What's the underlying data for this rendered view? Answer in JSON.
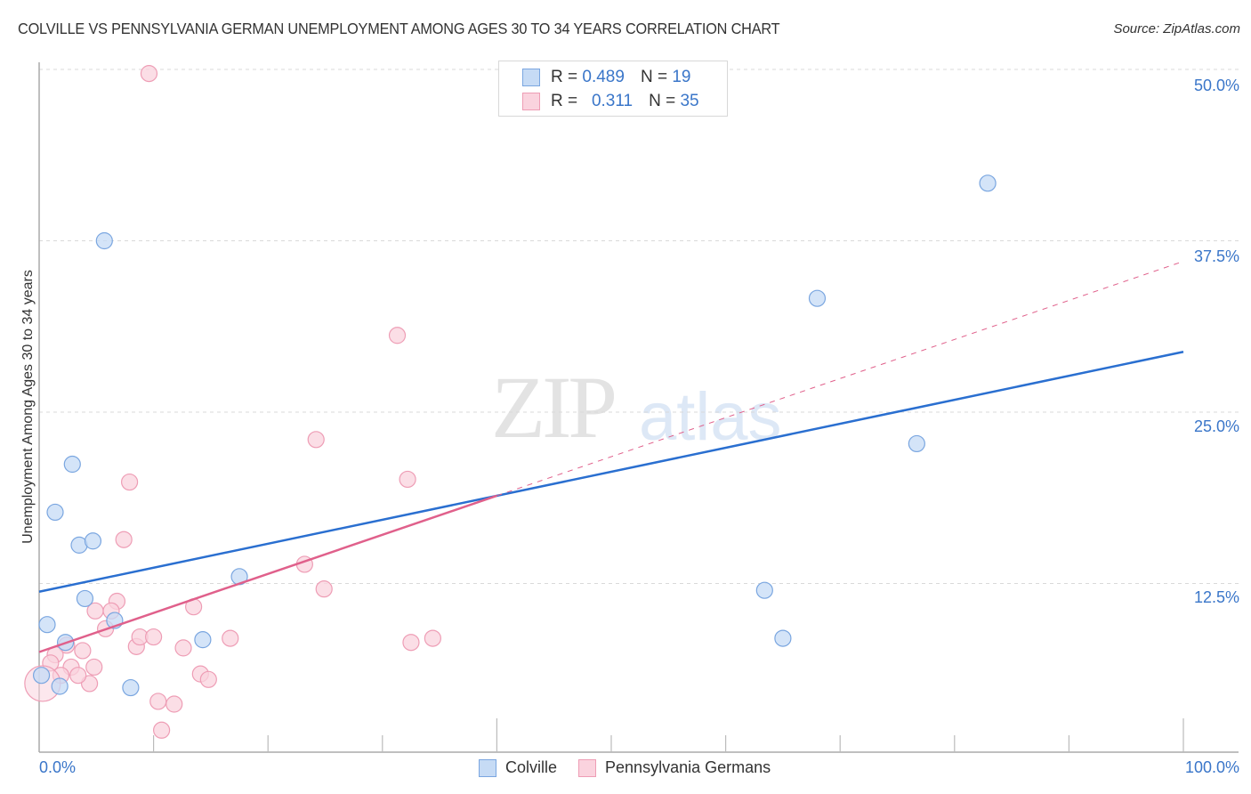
{
  "header": {
    "title": "COLVILLE VS PENNSYLVANIA GERMAN UNEMPLOYMENT AMONG AGES 30 TO 34 YEARS CORRELATION CHART",
    "source": "Source: ZipAtlas.com"
  },
  "watermark": {
    "zip": "ZIP",
    "atlas": "atlas"
  },
  "axes": {
    "ylabel": "Unemployment Among Ages 30 to 34 years",
    "yticks": [
      "50.0%",
      "37.5%",
      "25.0%",
      "12.5%"
    ],
    "xticks": [
      "0.0%",
      "100.0%"
    ]
  },
  "legend": {
    "rows": [
      {
        "r_label": "R = ",
        "r_value": "0.489",
        "n_label": "N = ",
        "n_value": "19",
        "color": "#aecbf0"
      },
      {
        "r_label": "R = ",
        "r_value": " 0.311",
        "n_label": "N = ",
        "n_value": "35",
        "color": "#f9c4d4"
      }
    ],
    "series": [
      "Colville",
      "Pennsylvania Germans"
    ]
  },
  "colors": {
    "blue_fill": "#c6dbf5",
    "blue_stroke": "#7aa6e0",
    "blue_line": "#2a6fd0",
    "pink_fill": "#fad3de",
    "pink_stroke": "#ee9db5",
    "pink_line": "#e0608b",
    "tick_text": "#3a76c9"
  },
  "chart_data": {
    "type": "scatter",
    "title": "COLVILLE VS PENNSYLVANIA GERMAN UNEMPLOYMENT AMONG AGES 30 TO 34 YEARS CORRELATION CHART",
    "xlabel": "",
    "ylabel": "Unemployment Among Ages 30 to 34 years",
    "xlim": [
      0,
      100
    ],
    "ylim": [
      0,
      50
    ],
    "x_tick_labels": [
      "0.0%",
      "100.0%"
    ],
    "y_tick_labels": [
      "12.5%",
      "25.0%",
      "37.5%",
      "50.0%"
    ],
    "grid": "horizontal dashed",
    "legend_position": "top-center and bottom",
    "series": [
      {
        "name": "Colville",
        "R": 0.489,
        "N": 19,
        "trend": {
          "x": [
            0,
            100
          ],
          "y": [
            11.9,
            29.4
          ]
        },
        "points": [
          [
            5.7,
            37.5
          ],
          [
            82.9,
            41.7
          ],
          [
            68.0,
            33.3
          ],
          [
            76.7,
            22.7
          ],
          [
            2.9,
            21.2
          ],
          [
            1.4,
            17.7
          ],
          [
            3.5,
            15.3
          ],
          [
            4.7,
            15.6
          ],
          [
            17.5,
            13.0
          ],
          [
            63.4,
            12.0
          ],
          [
            4.0,
            11.4
          ],
          [
            0.7,
            9.5
          ],
          [
            6.6,
            9.8
          ],
          [
            2.3,
            8.2
          ],
          [
            14.3,
            8.4
          ],
          [
            65.0,
            8.5
          ],
          [
            0.2,
            5.8
          ],
          [
            1.8,
            5.0
          ],
          [
            8.0,
            4.9
          ]
        ]
      },
      {
        "name": "Pennsylvania Germans",
        "R": 0.311,
        "N": 35,
        "trend": {
          "x": [
            0,
            100
          ],
          "y": [
            7.5,
            36.0
          ],
          "solid_until_x": 40
        },
        "points": [
          [
            9.6,
            49.7
          ],
          [
            31.3,
            30.6
          ],
          [
            24.2,
            23.0
          ],
          [
            32.2,
            20.1
          ],
          [
            7.9,
            19.9
          ],
          [
            7.4,
            15.7
          ],
          [
            23.2,
            13.9
          ],
          [
            24.9,
            12.1
          ],
          [
            6.8,
            11.2
          ],
          [
            4.9,
            10.5
          ],
          [
            6.3,
            10.5
          ],
          [
            13.5,
            10.8
          ],
          [
            5.8,
            9.2
          ],
          [
            8.5,
            7.9
          ],
          [
            8.8,
            8.6
          ],
          [
            10.0,
            8.6
          ],
          [
            16.7,
            8.5
          ],
          [
            32.5,
            8.2
          ],
          [
            34.4,
            8.5
          ],
          [
            12.6,
            7.8
          ],
          [
            2.4,
            8.0
          ],
          [
            1.4,
            7.3
          ],
          [
            3.8,
            7.6
          ],
          [
            1.0,
            6.7
          ],
          [
            2.8,
            6.4
          ],
          [
            4.8,
            6.4
          ],
          [
            14.1,
            5.9
          ],
          [
            14.8,
            5.5
          ],
          [
            4.4,
            5.2
          ],
          [
            3.4,
            5.8
          ],
          [
            1.9,
            5.8
          ],
          [
            10.4,
            3.9
          ],
          [
            11.8,
            3.7
          ],
          [
            10.7,
            1.8
          ],
          [
            0.3,
            5.2
          ]
        ]
      }
    ]
  }
}
